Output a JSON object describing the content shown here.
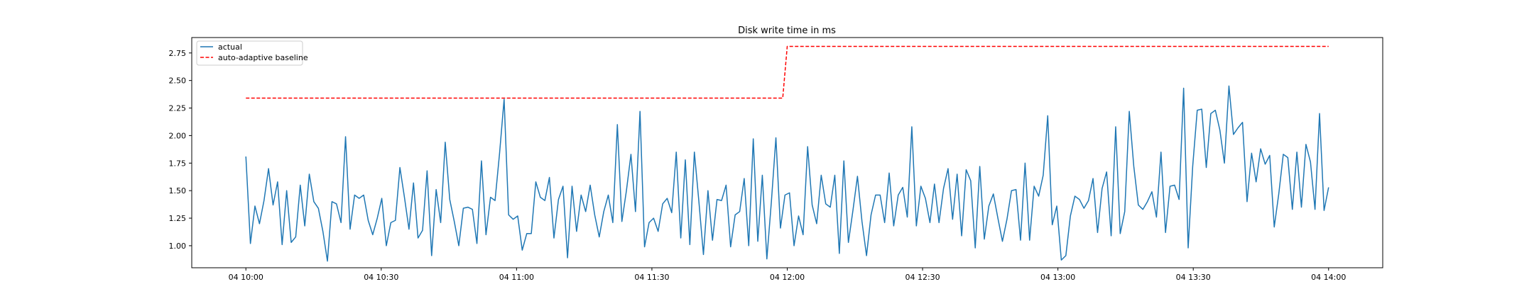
{
  "chart_data": {
    "type": "line",
    "title": "Disk write time in ms",
    "xlabel": "",
    "ylabel": "",
    "x_ticks": [
      "04 10:00",
      "04 10:30",
      "04 11:00",
      "04 11:30",
      "04 12:00",
      "04 12:30",
      "04 13:00",
      "04 13:30",
      "04 14:00"
    ],
    "y_ticks": [
      "1.00",
      "1.25",
      "1.50",
      "1.75",
      "2.00",
      "2.25",
      "2.50",
      "2.75"
    ],
    "xlim": [
      "04 09:48",
      "04 14:12"
    ],
    "ylim": [
      0.8,
      2.89
    ],
    "grid": false,
    "legend_position": "top-left",
    "series": [
      {
        "name": "actual",
        "color": "#1f77b4",
        "style": "solid",
        "x_start": "04 10:00",
        "x_end": "04 14:00",
        "values": [
          1.81,
          1.02,
          1.36,
          1.2,
          1.41,
          1.7,
          1.37,
          1.58,
          1.01,
          1.5,
          1.03,
          1.08,
          1.55,
          1.18,
          1.65,
          1.4,
          1.34,
          1.13,
          0.86,
          1.4,
          1.38,
          1.21,
          1.99,
          1.15,
          1.46,
          1.43,
          1.46,
          1.23,
          1.1,
          1.25,
          1.43,
          1.0,
          1.21,
          1.23,
          1.71,
          1.44,
          1.15,
          1.57,
          1.07,
          1.14,
          1.68,
          0.91,
          1.51,
          1.21,
          1.94,
          1.42,
          1.22,
          1.0,
          1.34,
          1.35,
          1.33,
          1.02,
          1.77,
          1.1,
          1.44,
          1.41,
          1.84,
          2.33,
          1.28,
          1.24,
          1.27,
          0.96,
          1.11,
          1.11,
          1.58,
          1.44,
          1.41,
          1.62,
          1.07,
          1.42,
          1.54,
          0.89,
          1.54,
          1.13,
          1.46,
          1.31,
          1.55,
          1.28,
          1.08,
          1.31,
          1.46,
          1.21,
          2.1,
          1.22,
          1.5,
          1.83,
          1.31,
          2.22,
          0.99,
          1.21,
          1.25,
          1.13,
          1.38,
          1.43,
          1.3,
          1.85,
          1.07,
          1.78,
          1.01,
          1.85,
          1.4,
          0.92,
          1.5,
          1.05,
          1.42,
          1.41,
          1.55,
          0.99,
          1.28,
          1.31,
          1.61,
          1.0,
          1.97,
          1.04,
          1.64,
          0.88,
          1.4,
          1.98,
          1.16,
          1.46,
          1.48,
          1.0,
          1.27,
          1.1,
          1.9,
          1.37,
          1.2,
          1.64,
          1.38,
          1.35,
          1.64,
          0.93,
          1.77,
          1.03,
          1.32,
          1.63,
          1.22,
          0.91,
          1.28,
          1.46,
          1.46,
          1.21,
          1.66,
          1.18,
          1.46,
          1.53,
          1.26,
          2.08,
          1.18,
          1.54,
          1.43,
          1.21,
          1.56,
          1.21,
          1.52,
          1.7,
          1.24,
          1.65,
          1.09,
          1.69,
          1.59,
          0.98,
          1.72,
          1.06,
          1.36,
          1.47,
          1.25,
          1.04,
          1.24,
          1.5,
          1.51,
          1.05,
          1.75,
          1.05,
          1.54,
          1.45,
          1.64,
          2.18,
          1.19,
          1.36,
          0.87,
          0.91,
          1.27,
          1.45,
          1.42,
          1.34,
          1.41,
          1.61,
          1.12,
          1.52,
          1.67,
          1.09,
          2.08,
          1.11,
          1.31,
          2.22,
          1.72,
          1.37,
          1.33,
          1.4,
          1.49,
          1.26,
          1.85,
          1.12,
          1.54,
          1.55,
          1.42,
          2.43,
          0.98,
          1.72,
          2.23,
          2.24,
          1.71,
          2.2,
          2.23,
          2.05,
          1.75,
          2.45,
          2.01,
          2.07,
          2.12,
          1.4,
          1.84,
          1.58,
          1.88,
          1.74,
          1.82,
          1.17,
          1.47,
          1.83,
          1.8,
          1.33,
          1.85,
          1.35,
          1.92,
          1.76,
          1.33,
          2.2,
          1.32,
          1.53
        ]
      },
      {
        "name": "auto-adaptive baseline",
        "color": "#ff0000",
        "style": "dashed",
        "x": [
          "04 10:00",
          "04 11:59",
          "04 12:00",
          "04 14:00"
        ],
        "values": [
          2.34,
          2.34,
          2.81,
          2.81
        ]
      }
    ]
  }
}
